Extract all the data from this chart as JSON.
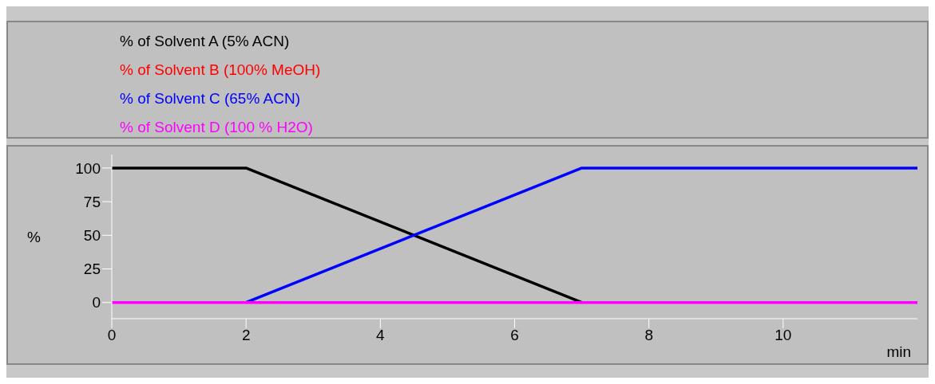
{
  "chart_data": {
    "type": "line",
    "xlabel": "min",
    "ylabel": "%",
    "x": [
      0,
      2,
      7,
      12
    ],
    "series": [
      {
        "name": "% of Solvent A (5% ACN)",
        "color": "#000000",
        "values": [
          100,
          100,
          0,
          null
        ]
      },
      {
        "name": "% of Solvent B (100% MeOH)",
        "color": "#ff0000",
        "values": [
          null,
          null,
          null,
          null
        ]
      },
      {
        "name": "% of Solvent C (65% ACN)",
        "color": "#0000ff",
        "values": [
          null,
          0,
          100,
          100
        ]
      },
      {
        "name": "% of Solvent D (100 % H2O)",
        "color": "#ff00ff",
        "values": [
          0,
          0,
          0,
          0
        ]
      }
    ],
    "xlim": [
      0,
      12
    ],
    "xticks": [
      0,
      2,
      4,
      6,
      8,
      10
    ],
    "ylim": [
      -12,
      110
    ],
    "yticks": [
      0,
      25,
      50,
      75,
      100
    ],
    "grid": false,
    "legend": "top",
    "marker": "none",
    "line_style": "solid"
  }
}
